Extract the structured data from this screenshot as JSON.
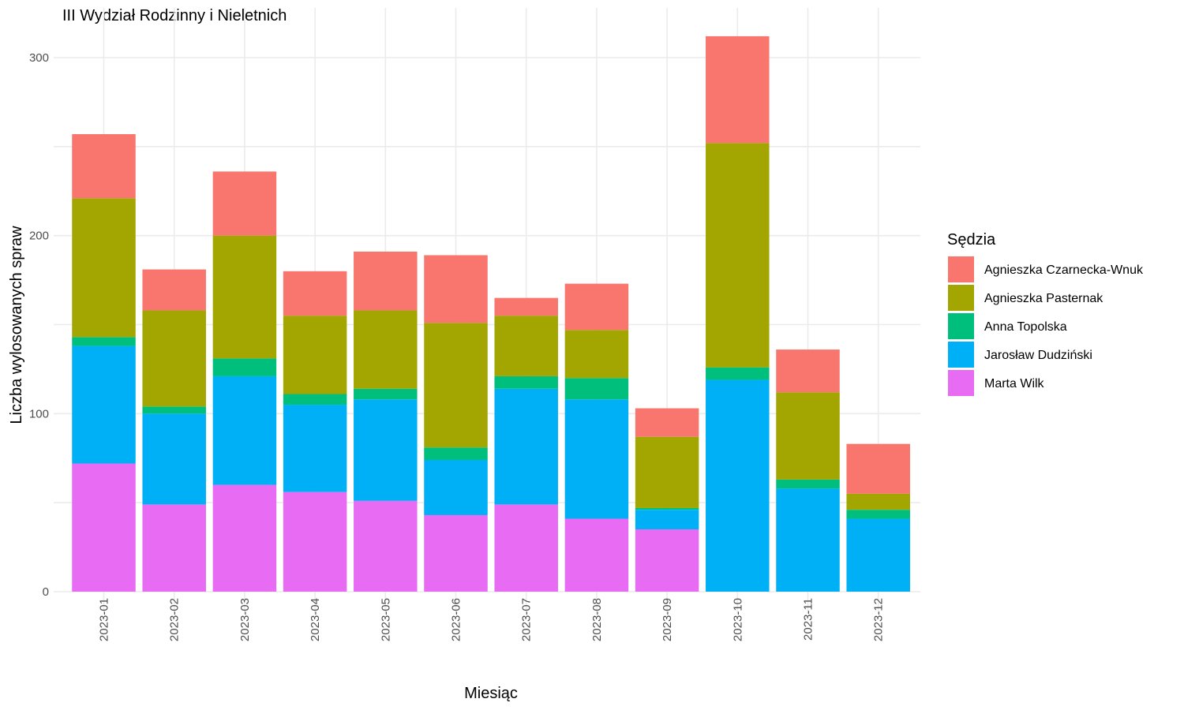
{
  "chart_data": {
    "type": "bar",
    "stacked": true,
    "title": "III Wydział Rodzinny i Nieletnich",
    "xlabel": "Miesiąc",
    "ylabel": "Liczba wylosowanych spraw",
    "ylim": [
      0,
      320
    ],
    "yticks": [
      0,
      100,
      200,
      300
    ],
    "grid": true,
    "legend": {
      "title": "Sędzia",
      "position": "right"
    },
    "categories": [
      "2023-01",
      "2023-02",
      "2023-03",
      "2023-04",
      "2023-05",
      "2023-06",
      "2023-07",
      "2023-08",
      "2023-09",
      "2023-10",
      "2023-11",
      "2023-12"
    ],
    "series": [
      {
        "name": "Marta Wilk",
        "color": "#E76BF3",
        "values": [
          72,
          49,
          60,
          56,
          51,
          43,
          49,
          41,
          35,
          0,
          0,
          0
        ]
      },
      {
        "name": "Jarosław Dudziński",
        "color": "#00B0F6",
        "values": [
          66,
          51,
          61,
          49,
          57,
          31,
          65,
          67,
          11,
          119,
          58,
          41
        ]
      },
      {
        "name": "Anna Topolska",
        "color": "#00BF7D",
        "values": [
          5,
          4,
          10,
          6,
          6,
          7,
          7,
          12,
          1,
          7,
          5,
          5
        ]
      },
      {
        "name": "Agnieszka Pasternak",
        "color": "#A3A500",
        "values": [
          78,
          54,
          69,
          44,
          44,
          70,
          34,
          27,
          40,
          126,
          49,
          9
        ]
      },
      {
        "name": "Agnieszka Czarnecka-Wnuk",
        "color": "#F8766D",
        "values": [
          36,
          23,
          36,
          25,
          33,
          38,
          10,
          26,
          16,
          60,
          24,
          28
        ]
      }
    ],
    "legend_order": [
      "Agnieszka Czarnecka-Wnuk",
      "Agnieszka Pasternak",
      "Anna Topolska",
      "Jarosław Dudziński",
      "Marta Wilk"
    ]
  }
}
